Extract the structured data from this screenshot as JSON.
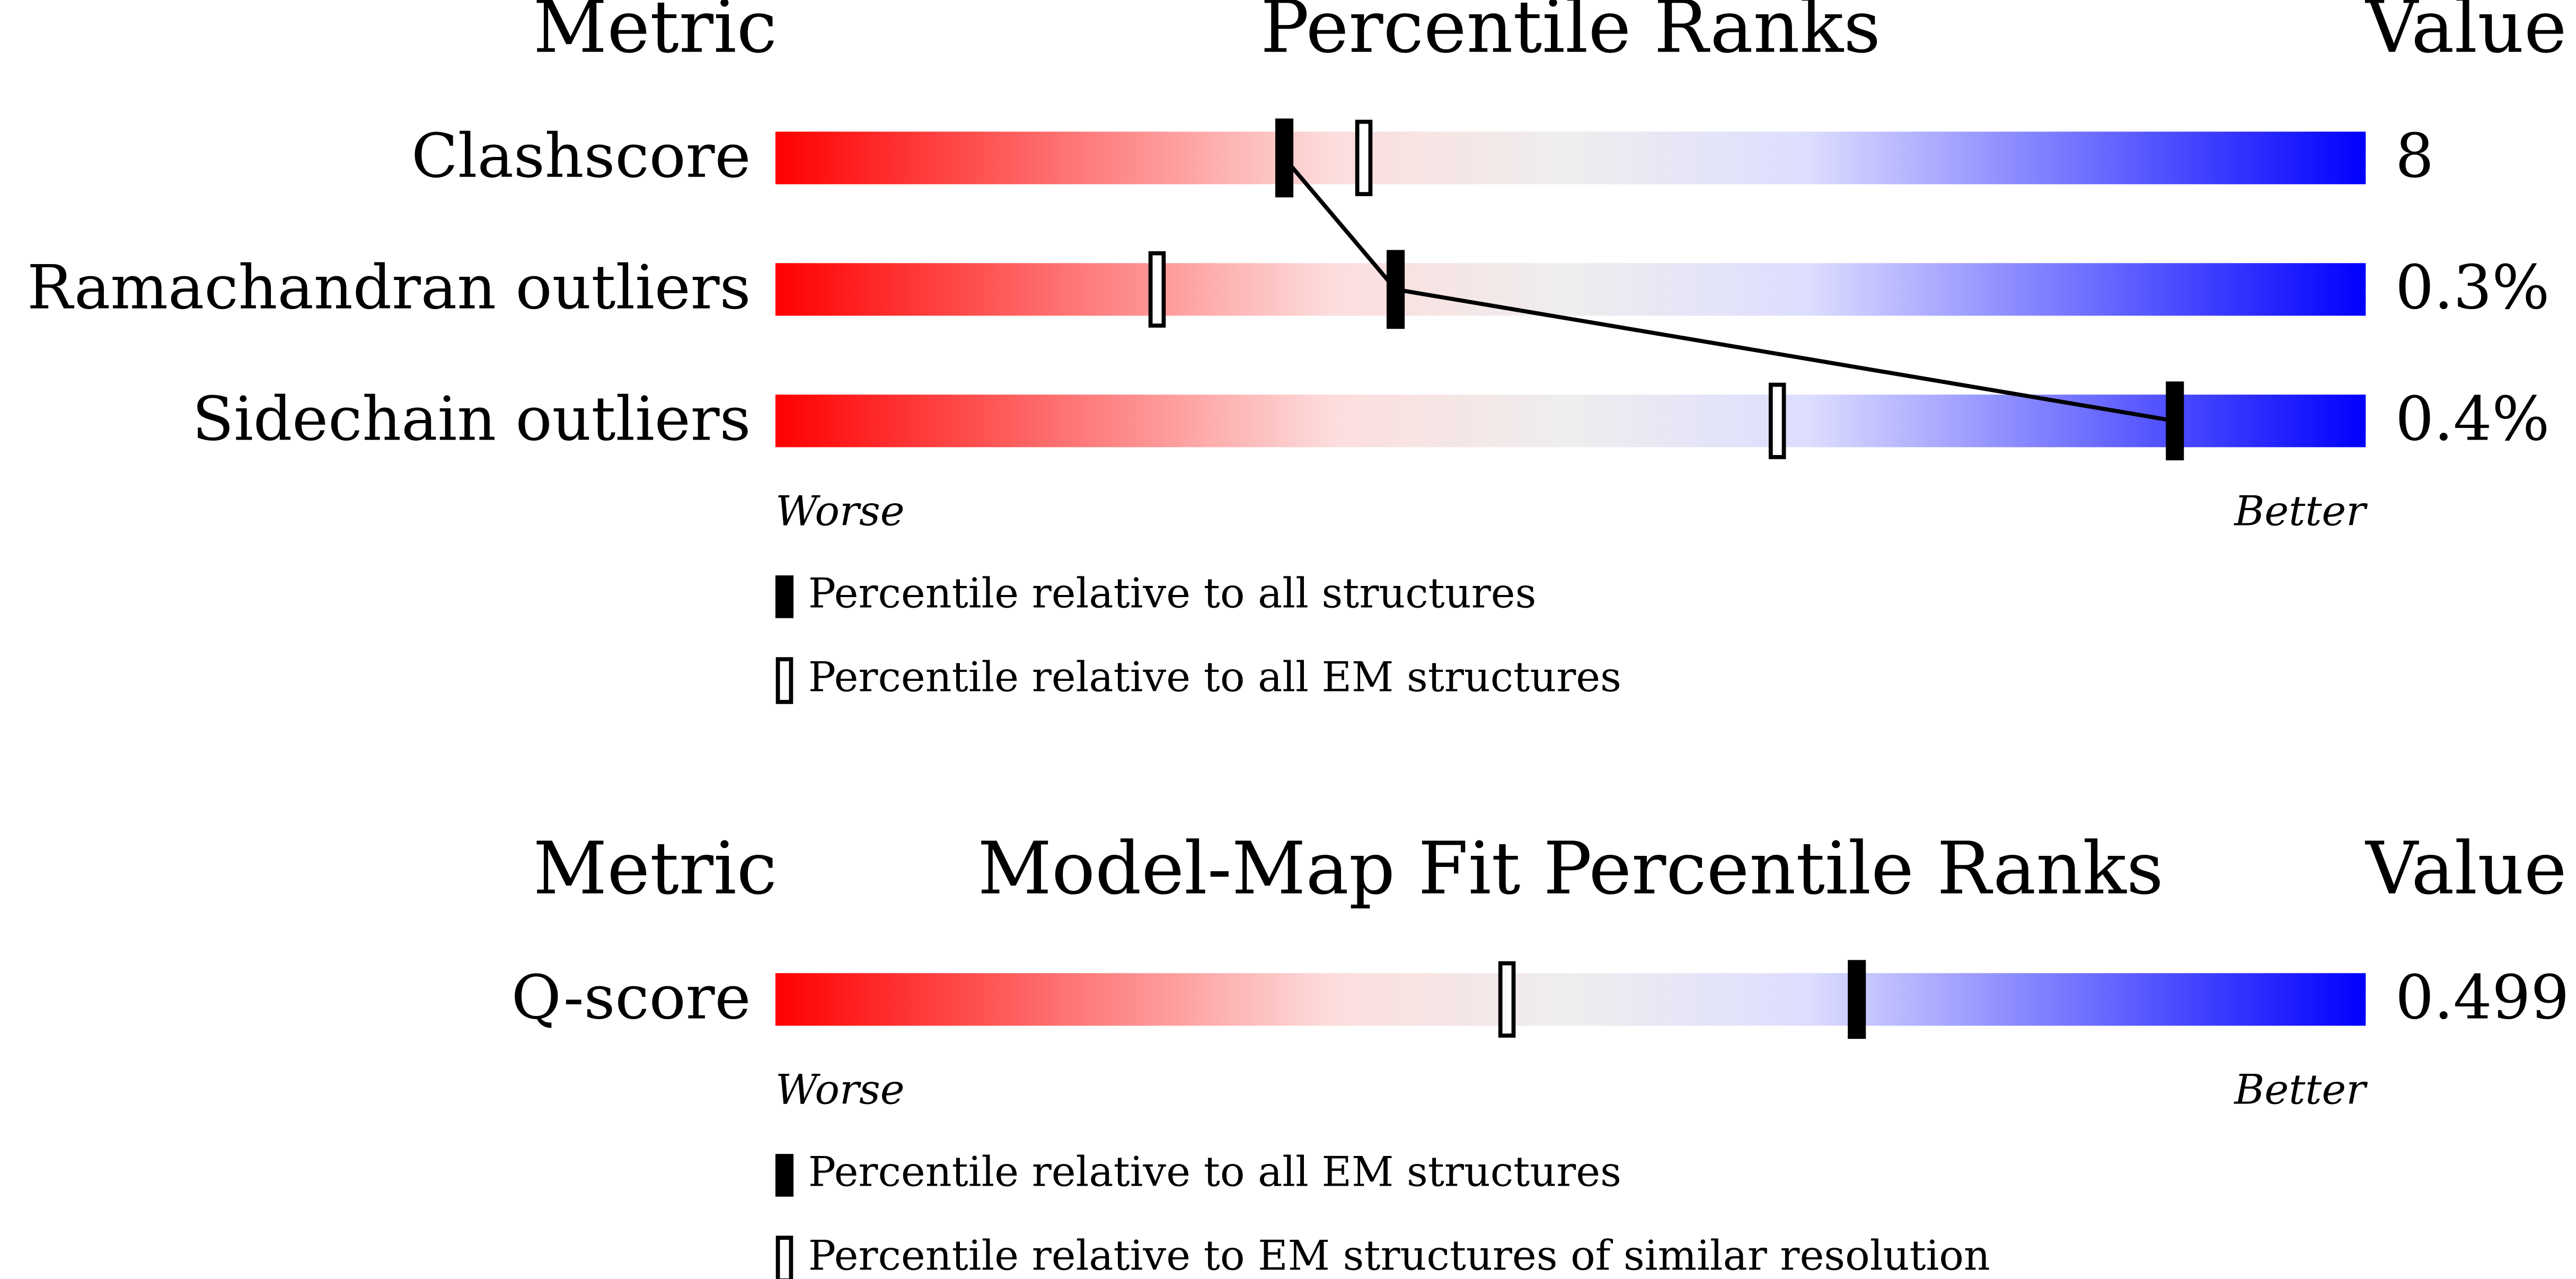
{
  "chart_data": [
    {
      "type": "percentile-slider",
      "metric_header": "Metric",
      "title": "Percentile Ranks",
      "value_header": "Value",
      "categories": [
        "Clashscore",
        "Ramachandran outliers",
        "Sidechain outliers"
      ],
      "value_labels": [
        "8",
        "0.3%",
        "0.4%"
      ],
      "xlim": [
        0,
        100
      ],
      "low_label": "Worse",
      "high_label": "Better",
      "connector": true,
      "series": [
        {
          "name": "Percentile relative to all structures",
          "color": "#000000",
          "values": [
            32,
            39,
            88
          ]
        },
        {
          "name": "Percentile relative to all EM structures",
          "color": "#ffffff",
          "values": [
            37,
            24,
            63
          ]
        }
      ]
    },
    {
      "type": "percentile-slider",
      "metric_header": "Metric",
      "title": "Model-Map Fit Percentile Ranks",
      "value_header": "Value",
      "categories": [
        "Q-score"
      ],
      "value_labels": [
        "0.499"
      ],
      "xlim": [
        0,
        100
      ],
      "low_label": "Worse",
      "high_label": "Better",
      "connector": false,
      "series": [
        {
          "name": "Percentile relative to all EM structures",
          "color": "#000000",
          "values": [
            68
          ]
        },
        {
          "name": "Percentile relative to EM structures of similar resolution",
          "color": "#ffffff",
          "values": [
            46
          ]
        }
      ]
    }
  ]
}
